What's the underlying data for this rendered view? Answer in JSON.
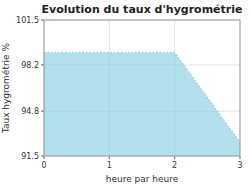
{
  "chart_data": {
    "type": "area",
    "title": "Evolution du taux d'hygrométrie",
    "x_label": "heure par heure",
    "y_label": "Taux hygrométrie %",
    "x": [
      0,
      2,
      3
    ],
    "values": [
      99.1,
      99.1,
      92.5
    ],
    "xlim": [
      0,
      3
    ],
    "ylim": [
      91.5,
      101.5
    ],
    "xticks": [
      0,
      1,
      2,
      3
    ],
    "yticks": [
      91.5,
      94.8,
      98.2,
      101.5
    ],
    "color": "#7fcce0",
    "line_style": "dotted",
    "grid": true
  }
}
